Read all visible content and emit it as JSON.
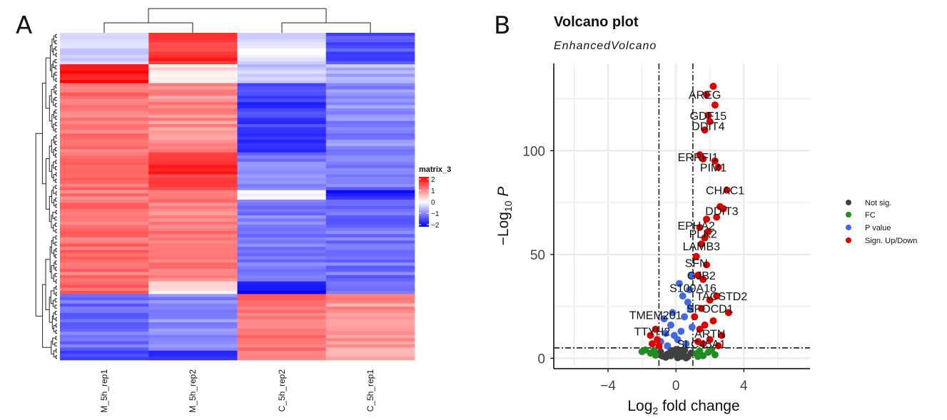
{
  "panel_a": {
    "label": "A",
    "columns": [
      "M_5h_rep1",
      "M_5h_rep2",
      "C_5h_rep2",
      "C_5h_rep1"
    ],
    "legend": {
      "title": "matrix_3",
      "ticks": [
        "2",
        "1",
        "0",
        "−1",
        "−2"
      ]
    },
    "colors": {
      "high": "#ff0000",
      "mid": "#ffffff",
      "low": "#0000ff"
    }
  },
  "panel_b": {
    "label": "B",
    "title": "Volcano plot",
    "subtitle": "EnhancedVolcano",
    "x_ticks": [
      "−4",
      "0",
      "4"
    ],
    "y_ticks": [
      "0",
      "50",
      "100"
    ],
    "legend": [
      {
        "label": "Not sig.",
        "color": "#404040"
      },
      {
        "label": "FC",
        "color": "#228b22"
      },
      {
        "label": "P value",
        "color": "#4169e1"
      },
      {
        "label": "Sign. Up/Down",
        "color": "#e00000"
      }
    ]
  },
  "chart_data": [
    {
      "type": "heatmap",
      "title": "",
      "columns": [
        "M_5h_rep1",
        "M_5h_rep2",
        "C_5h_rep2",
        "C_5h_rep1"
      ],
      "legend_title": "matrix_3",
      "value_range": [
        -2,
        2
      ],
      "clusters": [
        {
          "rows": 10,
          "values": [
            -0.3,
            1.6,
            -0.2,
            -1.4
          ]
        },
        {
          "rows": 6,
          "values": [
            1.9,
            0.2,
            -0.4,
            -0.6
          ]
        },
        {
          "rows": 22,
          "values": [
            1.1,
            0.9,
            -1.5,
            -0.9
          ]
        },
        {
          "rows": 12,
          "values": [
            1.2,
            1.6,
            -1.0,
            -1.1
          ]
        },
        {
          "rows": 3,
          "values": [
            1.0,
            1.0,
            0.1,
            -1.7
          ]
        },
        {
          "rows": 26,
          "values": [
            1.1,
            1.0,
            -1.0,
            -1.1
          ]
        },
        {
          "rows": 4,
          "values": [
            1.3,
            0.3,
            -1.8,
            -0.9
          ]
        },
        {
          "rows": 18,
          "values": [
            -1.1,
            -0.9,
            1.1,
            0.8
          ]
        },
        {
          "rows": 3,
          "values": [
            -1.5,
            -1.6,
            1.2,
            0.6
          ]
        }
      ]
    },
    {
      "type": "scatter",
      "title": "Volcano plot",
      "subtitle": "EnhancedVolcano",
      "xlabel": "Log2 fold change",
      "ylabel": "−Log10 P",
      "xlim": [
        -7.2,
        7.9
      ],
      "ylim": [
        -5,
        142
      ],
      "x_ticks": [
        -4,
        0,
        4
      ],
      "y_ticks": [
        0,
        50,
        100
      ],
      "fc_cutoff": 1,
      "p_cutoff_log": 5,
      "legend_placement": "right",
      "series": [
        {
          "name": "Not sig.",
          "color": "#404040",
          "points": [
            [
              -0.6,
              0.5
            ],
            [
              -0.3,
              1.2
            ],
            [
              0.1,
              0.3
            ],
            [
              0.4,
              1.8
            ],
            [
              0.7,
              0.8
            ],
            [
              -0.1,
              2.4
            ],
            [
              0.2,
              3.1
            ],
            [
              -0.5,
              2.0
            ],
            [
              0.5,
              3.8
            ],
            [
              -0.8,
              1.1
            ],
            [
              0.9,
              2.5
            ],
            [
              0.0,
              4.2
            ],
            [
              -0.3,
              3.6
            ],
            [
              0.6,
              0.2
            ],
            [
              -0.9,
              3.0
            ],
            [
              0.3,
              0.9
            ]
          ]
        },
        {
          "name": "FC",
          "color": "#228b22",
          "points": [
            [
              -1.8,
              4.0
            ],
            [
              -1.5,
              2.5
            ],
            [
              -1.3,
              3.8
            ],
            [
              -1.2,
              1.5
            ],
            [
              -2.0,
              3.2
            ],
            [
              1.2,
              2.2
            ],
            [
              1.4,
              3.5
            ],
            [
              1.6,
              1.2
            ],
            [
              1.9,
              2.9
            ],
            [
              2.1,
              4.2
            ],
            [
              2.3,
              1.7
            ],
            [
              1.3,
              0.9
            ]
          ]
        },
        {
          "name": "P value",
          "color": "#4169e1",
          "points": [
            [
              -0.9,
              8
            ],
            [
              -0.6,
              12
            ],
            [
              -0.3,
              16
            ],
            [
              -0.5,
              6
            ],
            [
              -0.2,
              22
            ],
            [
              0.1,
              9
            ],
            [
              0.3,
              13
            ],
            [
              0.5,
              20
            ],
            [
              0.7,
              27
            ],
            [
              0.8,
              33
            ],
            [
              0.9,
              40
            ],
            [
              -0.7,
              19
            ],
            [
              0.6,
              7
            ],
            [
              0.4,
              30
            ],
            [
              0.2,
              36
            ],
            [
              -0.1,
              11
            ],
            [
              0.85,
              24
            ],
            [
              0.95,
              15
            ]
          ]
        },
        {
          "name": "Sign. Up/Down",
          "color": "#e00000",
          "points": [
            [
              2.2,
              131
            ],
            [
              1.8,
              127
            ],
            [
              2.3,
              122
            ],
            [
              1.9,
              117
            ],
            [
              2.0,
              114
            ],
            [
              1.7,
              110
            ],
            [
              1.4,
              98
            ],
            [
              1.6,
              96
            ],
            [
              2.3,
              95
            ],
            [
              2.5,
              92
            ],
            [
              3.0,
              81
            ],
            [
              2.6,
              73
            ],
            [
              2.8,
              72
            ],
            [
              2.4,
              68
            ],
            [
              1.8,
              67
            ],
            [
              1.4,
              63
            ],
            [
              1.9,
              61
            ],
            [
              1.7,
              58
            ],
            [
              1.5,
              55
            ],
            [
              1.2,
              49
            ],
            [
              1.8,
              45
            ],
            [
              1.3,
              40
            ],
            [
              1.6,
              38
            ],
            [
              2.4,
              30
            ],
            [
              2.0,
              28
            ],
            [
              3.1,
              22
            ],
            [
              1.5,
              24
            ],
            [
              1.1,
              20
            ],
            [
              2.2,
              18
            ],
            [
              1.7,
              16
            ],
            [
              1.4,
              14
            ],
            [
              2.7,
              11
            ],
            [
              2.0,
              9
            ],
            [
              1.3,
              8
            ],
            [
              1.6,
              7
            ],
            [
              2.5,
              6
            ],
            [
              -1.2,
              14
            ],
            [
              -1.1,
              9
            ],
            [
              -1.5,
              11
            ],
            [
              -1.4,
              7
            ],
            [
              -1.0,
              6
            ]
          ]
        }
      ],
      "labels": [
        {
          "text": "AREG",
          "x": 1.7,
          "y": 127
        },
        {
          "text": "GDF15",
          "x": 1.9,
          "y": 117
        },
        {
          "text": "DDIT4",
          "x": 1.9,
          "y": 112
        },
        {
          "text": "ERRFI1",
          "x": 1.3,
          "y": 97
        },
        {
          "text": "PIM1",
          "x": 2.2,
          "y": 92
        },
        {
          "text": "CHAC1",
          "x": 2.9,
          "y": 81
        },
        {
          "text": "DDIT3",
          "x": 2.7,
          "y": 71
        },
        {
          "text": "EPHA2",
          "x": 1.2,
          "y": 64
        },
        {
          "text": "PLK2",
          "x": 1.6,
          "y": 60
        },
        {
          "text": "LAMB3",
          "x": 1.5,
          "y": 54
        },
        {
          "text": "SFN",
          "x": 1.2,
          "y": 46
        },
        {
          "text": "GJB2",
          "x": 1.5,
          "y": 40
        },
        {
          "text": "S100A16",
          "x": 1.0,
          "y": 34
        },
        {
          "text": "TACSTD2",
          "x": 2.7,
          "y": 30
        },
        {
          "text": "SPOCD1",
          "x": 2.0,
          "y": 24
        },
        {
          "text": "TMEM201",
          "x": -1.2,
          "y": 21
        },
        {
          "text": "TTYH2",
          "x": -1.4,
          "y": 13
        },
        {
          "text": "ARTN",
          "x": 2.0,
          "y": 12
        },
        {
          "text": "SLC45A1",
          "x": 1.5,
          "y": 7
        }
      ]
    }
  ]
}
